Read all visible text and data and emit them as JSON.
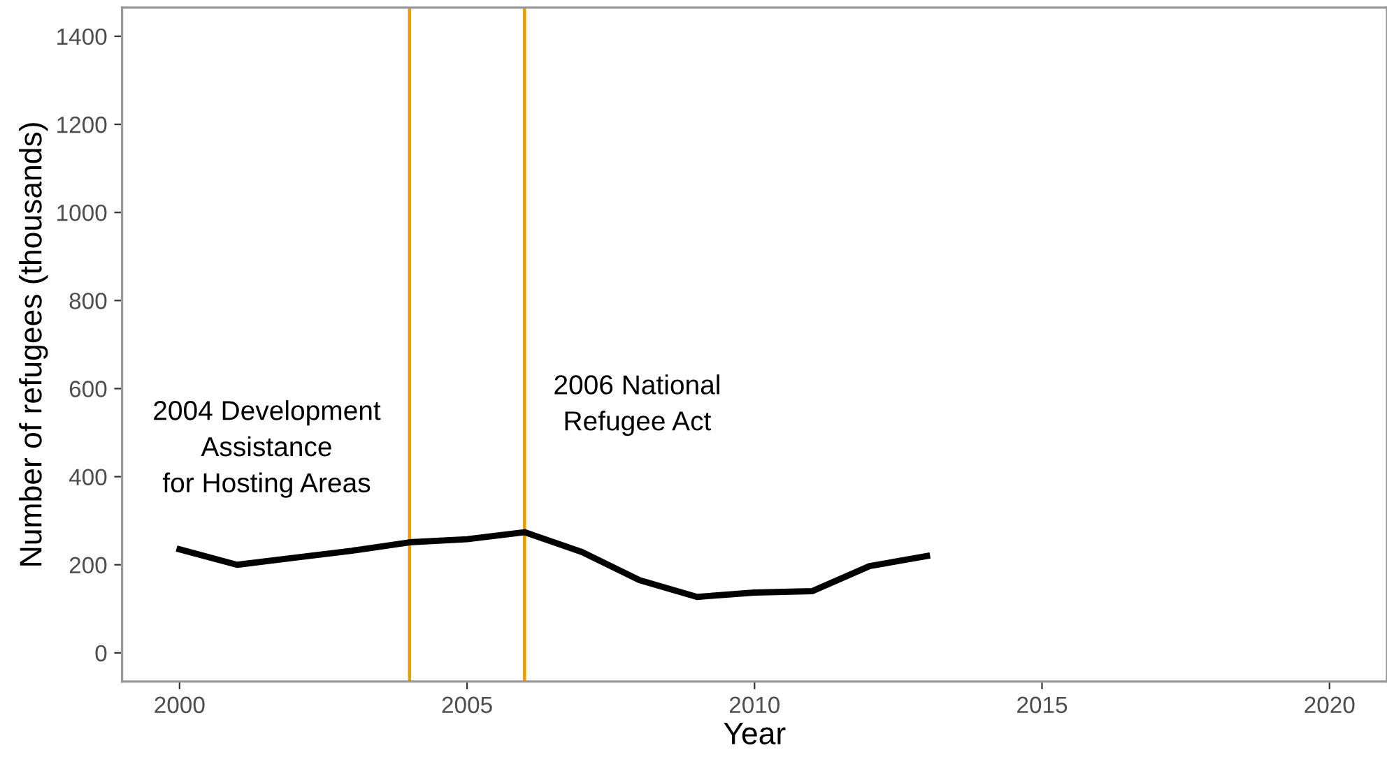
{
  "chart_data": {
    "type": "line",
    "xlabel": "Year",
    "ylabel": "Number of refugees (thousands)",
    "x": [
      2000,
      2001,
      2002,
      2003,
      2004,
      2005,
      2006,
      2007,
      2008,
      2009,
      2010,
      2011,
      2012,
      2013
    ],
    "series": [
      {
        "color": "#000000",
        "values": [
          235,
          200,
          216,
          232,
          251,
          258,
          274,
          229,
          165,
          127,
          137,
          140,
          197,
          220
        ]
      }
    ],
    "xlim": [
      1999,
      2021
    ],
    "ylim": [
      -65,
      1465
    ],
    "xticks": [
      2000,
      2005,
      2010,
      2015,
      2020
    ],
    "yticks": [
      0,
      200,
      400,
      600,
      800,
      1000,
      1200,
      1400
    ],
    "grid": false,
    "legend": false,
    "marker": "none",
    "line_style": "solid",
    "ref_lines": [
      {
        "axis": "x",
        "value": 2004,
        "color": "#e69f00",
        "label": "2004 Development\nAssistance\nfor Hosting Areas"
      },
      {
        "axis": "x",
        "value": 2006,
        "color": "#e69f00",
        "label": "2006 National\nRefugee Act"
      }
    ]
  }
}
